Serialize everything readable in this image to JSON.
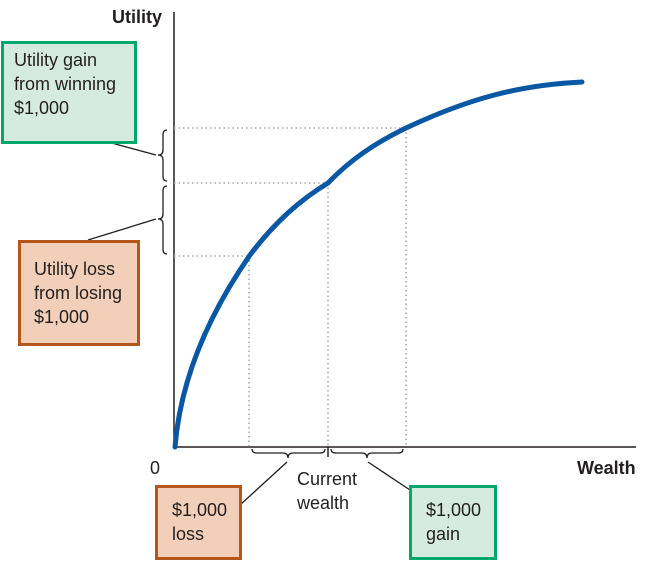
{
  "axes": {
    "y_title": "Utility",
    "x_title": "Wealth",
    "origin_label": "0"
  },
  "callouts": {
    "utility_gain": "Utility gain\nfrom winning\n$1,000",
    "utility_loss": "Utility loss\nfrom losing\n$1,000",
    "current_wealth": "Current\nwealth",
    "wealth_loss": "$1,000\nloss",
    "wealth_gain": "$1,000\ngain"
  },
  "colors": {
    "curve": "#0a57a4",
    "gain_border": "#00a86b",
    "gain_fill": "#d5ebe0",
    "loss_border": "#b5561a",
    "loss_fill": "#f1cfb8",
    "guide": "#a7a9ac",
    "axis": "#231f20"
  }
}
